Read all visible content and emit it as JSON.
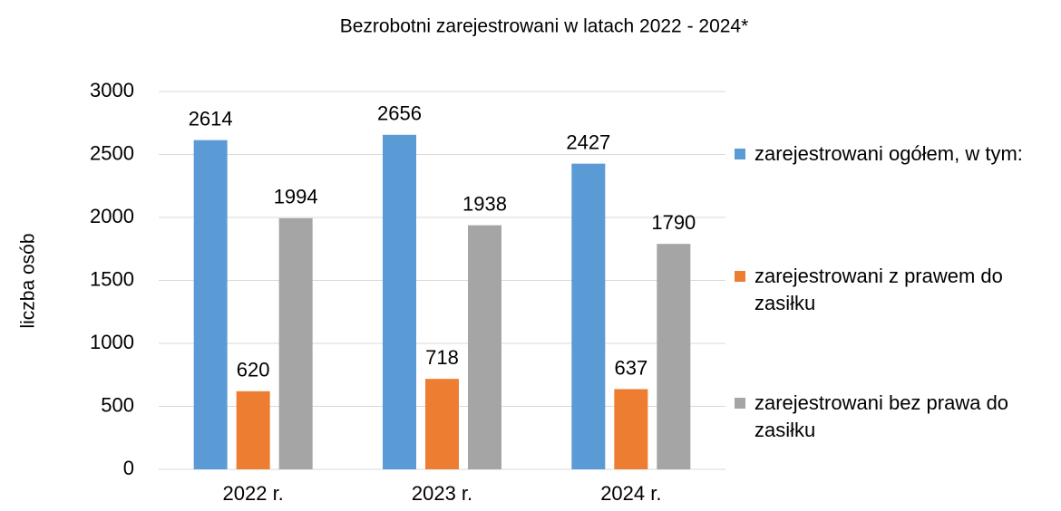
{
  "chart_data": {
    "type": "bar",
    "title": "Bezrobotni zarejestrowani w latach 2022 - 2024*",
    "y_label": "liczba osób",
    "categories": [
      "2022 r.",
      "2023 r.",
      "2024 r."
    ],
    "series": [
      {
        "name": "zarejestrowani ogółem, w tym:",
        "color": "#5b9bd5",
        "values": [
          2614,
          2656,
          2427
        ]
      },
      {
        "name": "zarejestrowani z prawem do zasiłku",
        "color": "#ed7d31",
        "values": [
          620,
          718,
          637
        ]
      },
      {
        "name": "zarejestrowani bez prawa do zasiłku",
        "color": "#a5a5a5",
        "values": [
          1994,
          1938,
          1790
        ]
      }
    ],
    "ylim": [
      0,
      3000
    ],
    "yticks": [
      0,
      500,
      1000,
      1500,
      2000,
      2500,
      3000
    ],
    "grid": true,
    "legend": "right"
  }
}
